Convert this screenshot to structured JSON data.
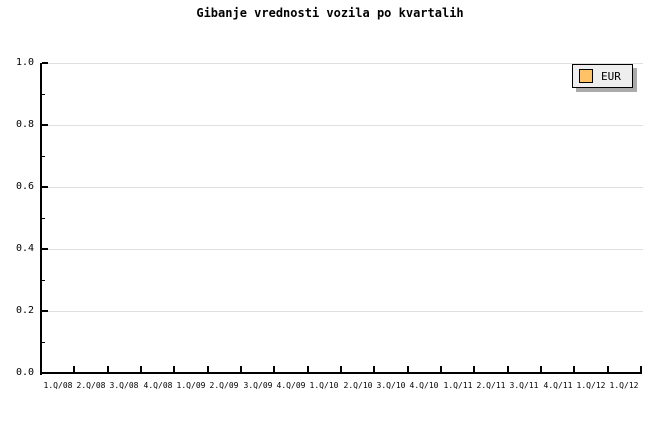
{
  "chart_data": {
    "type": "line",
    "title": "Gibanje vrednosti vozila po kvartalih",
    "categories": [
      "1.Q/08",
      "2.Q/08",
      "3.Q/08",
      "4.Q/08",
      "1.Q/09",
      "2.Q/09",
      "3.Q/09",
      "4.Q/09",
      "1.Q/10",
      "2.Q/10",
      "3.Q/10",
      "4.Q/10",
      "1.Q/11",
      "2.Q/11",
      "3.Q/11",
      "4.Q/11",
      "1.Q/12",
      "1.Q/12"
    ],
    "series": [
      {
        "name": "EUR",
        "color": "#FFC266",
        "values": []
      }
    ],
    "xlabel": "",
    "ylabel": "",
    "ylim": [
      0.0,
      1.0
    ],
    "y_major_step": 0.2,
    "y_minor_step": 0.1,
    "y_tick_labels": [
      "0.0",
      "0.2",
      "0.4",
      "0.6",
      "0.8",
      "1.0"
    ],
    "grid": "horizontal-major-only",
    "legend_position": "top-right",
    "plot_empty": true
  },
  "colors": {
    "background": "#FFFFFF",
    "axis": "#000000",
    "gridline": "#DFDFDF",
    "legend_background": "#EEEEEE",
    "legend_border": "#000000",
    "legend_shadow": "#ABABAB",
    "series_eur_swatch": "#FFC266",
    "text": "#000000"
  }
}
